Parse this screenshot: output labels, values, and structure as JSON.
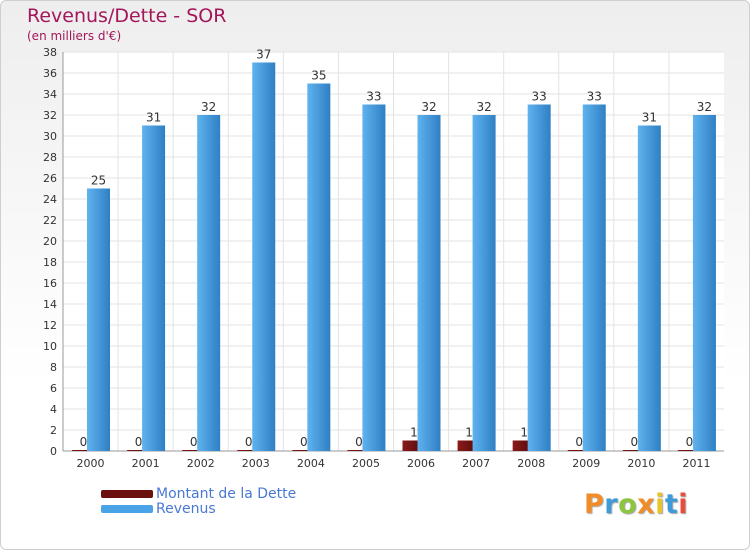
{
  "chart_data": {
    "type": "bar",
    "title": "Revenus/Dette - SOR",
    "subtitle": "(en milliers d'€)",
    "categories": [
      "2000",
      "2001",
      "2002",
      "2003",
      "2004",
      "2005",
      "2006",
      "2007",
      "2008",
      "2009",
      "2010",
      "2011"
    ],
    "series": [
      {
        "name": "Montant de la Dette",
        "color": "#6b0f0f",
        "values": [
          0,
          0,
          0,
          0,
          0,
          0,
          1,
          1,
          1,
          0,
          0,
          0
        ]
      },
      {
        "name": "Revenus",
        "color": "#4aa3e6",
        "values": [
          25,
          31,
          32,
          37,
          35,
          33,
          32,
          32,
          33,
          33,
          31,
          32
        ]
      }
    ],
    "ylim": [
      0,
      38
    ],
    "ystep": 2,
    "yticks": [
      "0",
      "2",
      "4",
      "6",
      "8",
      "10",
      "12",
      "14",
      "16",
      "18",
      "20",
      "22",
      "24",
      "26",
      "28",
      "30",
      "32",
      "34",
      "36",
      "38"
    ],
    "legend_position": "bottom-left"
  },
  "logo": {
    "letters": [
      "P",
      "r",
      "o",
      "x",
      "i",
      "t",
      "i"
    ],
    "colors": [
      "#f28c28",
      "#3f9ad8",
      "#8cc63f",
      "#f28c28",
      "#e8c32c",
      "#3f9ad8",
      "#e94c3d"
    ]
  }
}
